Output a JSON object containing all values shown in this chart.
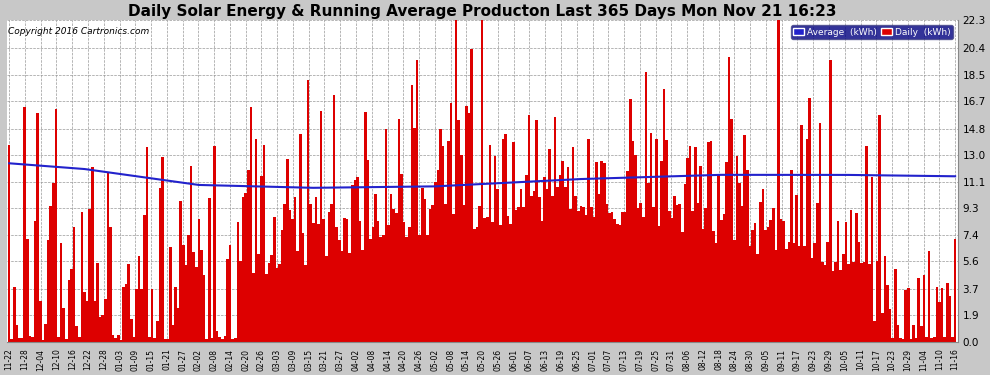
{
  "title": "Daily Solar Energy & Running Average Producton Last 365 Days Mon Nov 21 16:23",
  "copyright": "Copyright 2016 Cartronics.com",
  "yticks": [
    0.0,
    1.9,
    3.7,
    5.6,
    7.4,
    9.3,
    11.1,
    13.0,
    14.8,
    16.7,
    18.5,
    20.4,
    22.3
  ],
  "ylim": [
    0.0,
    22.3
  ],
  "bar_color": "#DD0000",
  "avg_color": "#2222CC",
  "bg_color": "#C8C8C8",
  "plot_bg_color": "#FFFFFF",
  "grid_color": "#999999",
  "title_fontsize": 11,
  "legend_labels": [
    "Average  (kWh)",
    "Daily  (kWh)"
  ],
  "legend_colors": [
    "#2222CC",
    "#DD0000"
  ],
  "legend_bg": "#000080",
  "x_dates": [
    "11-22",
    "11-28",
    "12-04",
    "12-10",
    "12-16",
    "12-22",
    "12-28",
    "01-03",
    "01-09",
    "01-15",
    "01-21",
    "01-27",
    "02-02",
    "02-08",
    "02-14",
    "02-20",
    "02-26",
    "03-03",
    "03-09",
    "03-15",
    "03-21",
    "03-27",
    "04-02",
    "04-08",
    "04-14",
    "04-20",
    "04-26",
    "05-02",
    "05-08",
    "05-14",
    "05-20",
    "05-26",
    "06-01",
    "06-07",
    "06-13",
    "06-19",
    "06-25",
    "07-01",
    "07-07",
    "07-13",
    "07-19",
    "07-25",
    "07-31",
    "08-06",
    "08-12",
    "08-18",
    "08-24",
    "08-30",
    "09-05",
    "09-11",
    "09-17",
    "09-23",
    "09-29",
    "10-05",
    "10-11",
    "10-17",
    "10-23",
    "10-29",
    "11-04",
    "11-10",
    "11-16"
  ],
  "avg_keypoints_t": [
    0.0,
    0.08,
    0.2,
    0.32,
    0.45,
    0.6,
    0.75,
    0.88,
    1.0
  ],
  "avg_keypoints_v": [
    12.4,
    12.0,
    10.9,
    10.7,
    10.8,
    11.3,
    11.6,
    11.6,
    11.5
  ]
}
